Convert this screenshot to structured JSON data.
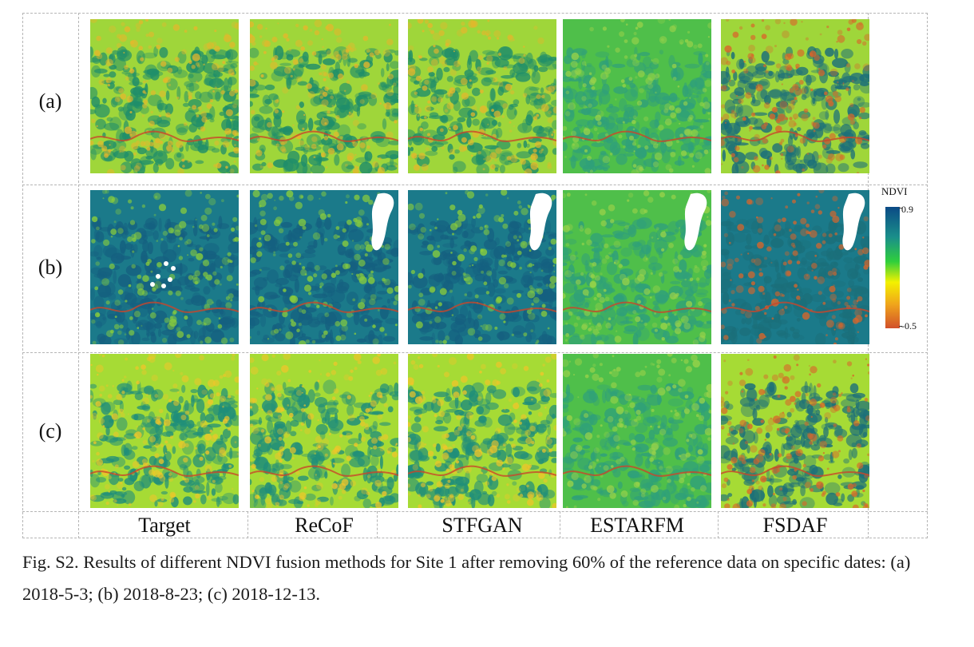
{
  "figure": {
    "row_labels": [
      "(a)",
      "(b)",
      "(c)"
    ],
    "column_labels": [
      "Target",
      "ReCoF",
      "STFGAN",
      "ESTARFM",
      "FSDAF"
    ],
    "colorbar": {
      "title": "NDVI",
      "max_label": "0.9",
      "min_label": "-0.5",
      "colors": [
        "#0b4a86",
        "#1a8f8a",
        "#2fcf3c",
        "#f3f100",
        "#f0a61b",
        "#d2502a"
      ]
    },
    "panel_palettes": {
      "a": [
        "#9fd63a",
        "#1f8e6a",
        "#e7b62b"
      ],
      "b": [
        "#1b7a8a",
        "#156080",
        "#8ccf3a"
      ],
      "c": [
        "#a6db35",
        "#1f8e7a",
        "#f0c52a"
      ]
    },
    "caption": "Fig. S2. Results of different NDVI fusion methods for Site 1 after removing 60% of the reference data on specific dates: (a) 2018-5-3; (b) 2018-8-23; (c) 2018-12-13."
  }
}
